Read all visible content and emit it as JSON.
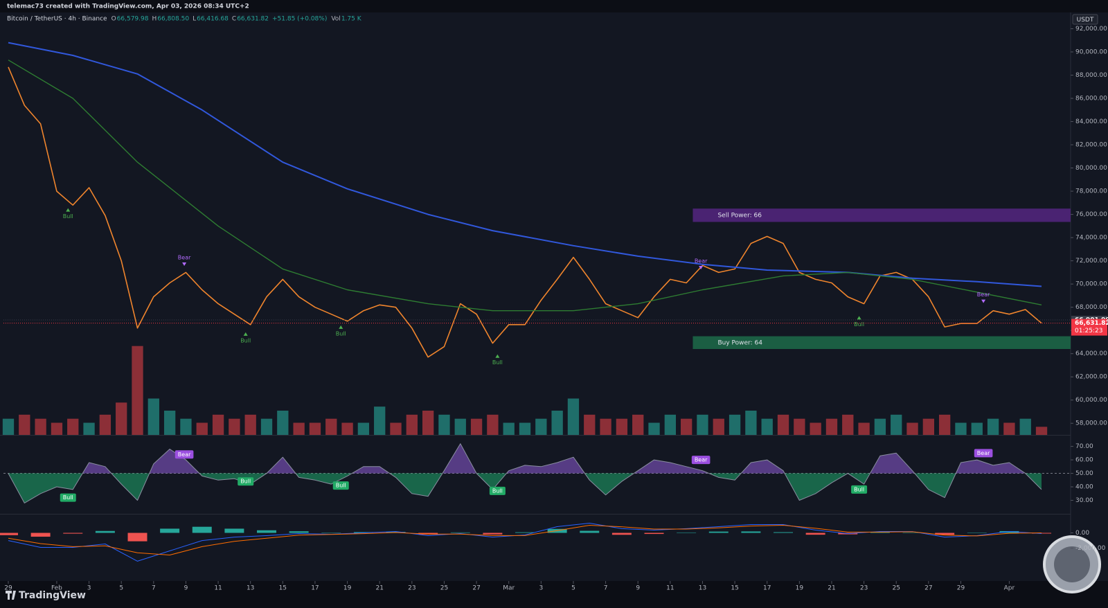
{
  "header": {
    "author": "telemac73 created with TradingView.com, Apr 03, 2026 08:34 UTC+2",
    "symbol": "Bitcoin / TetherUS · 4h · Binance",
    "ohlc": [
      {
        "key": "O",
        "value": "66,579.98"
      },
      {
        "key": "H",
        "value": "66,808.50"
      },
      {
        "key": "L",
        "value": "66,416.68"
      },
      {
        "key": "C",
        "value": "66,631.82"
      }
    ],
    "change": "+51.85 (+0.08%)",
    "volume": {
      "key": "Vol",
      "value": "1.75 K"
    },
    "currency": "USDT",
    "brand": "TradingView"
  },
  "chart_data": [
    {
      "type": "line",
      "xlim": [
        -0.3,
        65.8
      ],
      "ylim": [
        57000,
        93400
      ],
      "yticks": [
        {
          "value": 92000,
          "label": "92,000.00"
        },
        {
          "value": 90000,
          "label": "90,000.00"
        },
        {
          "value": 88000,
          "label": "88,000.00"
        },
        {
          "value": 86000,
          "label": "86,000.00"
        },
        {
          "value": 84000,
          "label": "84,000.00"
        },
        {
          "value": 82000,
          "label": "82,000.00"
        },
        {
          "value": 80000,
          "label": "80,000.00"
        },
        {
          "value": 78000,
          "label": "78,000.00"
        },
        {
          "value": 76000,
          "label": "76,000.00"
        },
        {
          "value": 74000,
          "label": "74,000.00"
        },
        {
          "value": 72000,
          "label": "72,000.00"
        },
        {
          "value": 70000,
          "label": "70,000.00"
        },
        {
          "value": 68000,
          "label": "68,000.00"
        },
        {
          "value": 66000,
          "label": "66,000.00"
        },
        {
          "value": 64000,
          "label": "64,000.00"
        },
        {
          "value": 62000,
          "label": "62,000.00"
        },
        {
          "value": 60000,
          "label": "60,000.00"
        },
        {
          "value": 58000,
          "label": "58,000.00"
        }
      ],
      "series": [
        {
          "color": "#f0852d",
          "width": 1.6,
          "x": [
            0,
            1,
            2,
            3,
            4,
            5,
            6,
            7,
            8,
            9,
            10,
            11,
            12,
            13,
            14,
            15,
            16,
            17,
            18,
            19,
            20,
            21,
            22,
            23,
            24,
            25,
            26,
            27,
            28,
            29,
            30,
            31,
            32,
            33,
            34,
            35,
            36,
            37,
            38,
            39,
            40,
            41,
            42,
            43,
            44,
            45,
            46,
            47,
            48,
            49,
            50,
            51,
            52,
            53,
            54,
            55,
            56,
            57,
            58,
            59,
            60,
            61,
            62,
            63,
            64
          ],
          "values": [
            88700,
            85400,
            83800,
            78000,
            76800,
            78300,
            75900,
            72000,
            66200,
            68900,
            70100,
            71000,
            69500,
            68300,
            67400,
            66500,
            68900,
            70400,
            68900,
            68000,
            67400,
            66800,
            67700,
            68200,
            68000,
            66200,
            63700,
            64600,
            68300,
            67400,
            64900,
            66500,
            66500,
            68600,
            70400,
            72300,
            70400,
            68300,
            67700,
            67100,
            68900,
            70400,
            70100,
            71600,
            71000,
            71300,
            73500,
            74100,
            73500,
            71000,
            70400,
            70100,
            68900,
            68300,
            70700,
            71000,
            70400,
            68900,
            66300,
            66600,
            66600,
            67700,
            67400,
            67800,
            66631.82
          ]
        },
        {
          "color": "#3158dc",
          "width": 2,
          "x": [
            0,
            4,
            8,
            12,
            17,
            21,
            26,
            30,
            35,
            39,
            43,
            47,
            52,
            56,
            60,
            64
          ],
          "values": [
            90800,
            89700,
            88100,
            85000,
            80500,
            78200,
            76000,
            74600,
            73300,
            72400,
            71700,
            71200,
            71000,
            70500,
            70200,
            69800
          ]
        },
        {
          "color": "#2e7d32",
          "width": 1.4,
          "x": [
            0,
            4,
            8,
            13,
            17,
            21,
            26,
            30,
            35,
            39,
            43,
            48,
            52,
            56,
            64
          ],
          "values": [
            89300,
            86000,
            80500,
            75000,
            71300,
            69500,
            68300,
            67700,
            67700,
            68300,
            69500,
            70700,
            71000,
            70400,
            68200
          ]
        }
      ],
      "zones": [
        {
          "label": "Sell Power: 66",
          "x0": 42.4,
          "y0": 75350,
          "y1": 76500,
          "color": "#4a2372"
        },
        {
          "label": "Buy Power: 64",
          "x0": 42.4,
          "y0": 64400,
          "y1": 65500,
          "color": "#1b5e43"
        }
      ],
      "annotations": [
        {
          "text": "Bull",
          "x": 3.7,
          "y": 76300,
          "pos": "below",
          "color": "#4caf50"
        },
        {
          "text": "Bear",
          "x": 10.9,
          "y": 71800,
          "pos": "above",
          "color": "#b36bff"
        },
        {
          "text": "Bull",
          "x": 14.7,
          "y": 65600,
          "pos": "below",
          "color": "#4caf50"
        },
        {
          "text": "Bull",
          "x": 20.6,
          "y": 66200,
          "pos": "below",
          "color": "#4caf50"
        },
        {
          "text": "Bull",
          "x": 30.3,
          "y": 63700,
          "pos": "below",
          "color": "#4caf50"
        },
        {
          "text": "Bear",
          "x": 42.9,
          "y": 71500,
          "pos": "above",
          "color": "#b36bff"
        },
        {
          "text": "Bull",
          "x": 52.7,
          "y": 67000,
          "pos": "below",
          "color": "#4caf50"
        },
        {
          "text": "Bear",
          "x": 60.4,
          "y": 68600,
          "pos": "above",
          "color": "#b36bff"
        }
      ],
      "price_labels": [
        {
          "value": 66901.99,
          "label": "66,901.99",
          "color": "#3a3e4a"
        },
        {
          "value": 66631.82,
          "label": "66,631.82",
          "countdown": "01:25:23",
          "color": "#f23645"
        }
      ]
    },
    {
      "type": "bar",
      "xlim": [
        -0.3,
        65.8
      ],
      "ylim": [
        0,
        30
      ],
      "up_color": "#1f6e6a",
      "down_color": "#8c2f37",
      "x": [
        0,
        1,
        2,
        3,
        4,
        5,
        6,
        7,
        8,
        9,
        10,
        11,
        12,
        13,
        14,
        15,
        16,
        17,
        18,
        19,
        20,
        21,
        22,
        23,
        24,
        25,
        26,
        27,
        28,
        29,
        30,
        31,
        32,
        33,
        34,
        35,
        36,
        37,
        38,
        39,
        40,
        41,
        42,
        43,
        44,
        45,
        46,
        47,
        48,
        49,
        50,
        51,
        52,
        53,
        54,
        55,
        56,
        57,
        58,
        59,
        60,
        61,
        62,
        63,
        64
      ],
      "values": [
        4,
        5,
        4,
        3,
        4,
        3,
        5,
        8,
        22,
        9,
        6,
        4,
        3,
        5,
        4,
        5,
        4,
        6,
        3,
        3,
        4,
        3,
        3,
        7,
        3,
        5,
        6,
        5,
        4,
        4,
        5,
        3,
        3,
        4,
        6,
        9,
        5,
        4,
        4,
        5,
        3,
        5,
        4,
        5,
        4,
        5,
        6,
        4,
        5,
        4,
        3,
        4,
        5,
        3,
        4,
        5,
        3,
        4,
        5,
        3,
        3,
        4,
        3,
        4,
        2
      ]
    },
    {
      "type": "line",
      "xlim": [
        -0.3,
        65.8
      ],
      "ylim": [
        20,
        78
      ],
      "yticks": [
        {
          "value": 70,
          "label": "70.00"
        },
        {
          "value": 60,
          "label": "60.00"
        },
        {
          "value": 50,
          "label": "50.00"
        },
        {
          "value": 40,
          "label": "40.00"
        },
        {
          "value": 30,
          "label": "30.00"
        }
      ],
      "baseline": 50,
      "fill_above": "#8e5bd6",
      "fill_below": "#1fa86b",
      "series": [
        {
          "color": "#8a8fa0",
          "width": 1,
          "x": [
            0,
            1,
            2,
            3,
            4,
            5,
            6,
            7,
            8,
            9,
            10,
            11,
            12,
            13,
            14,
            15,
            16,
            17,
            18,
            19,
            20,
            21,
            22,
            23,
            24,
            25,
            26,
            27,
            28,
            29,
            30,
            31,
            32,
            33,
            34,
            35,
            36,
            37,
            38,
            39,
            40,
            41,
            42,
            43,
            44,
            45,
            46,
            47,
            48,
            49,
            50,
            51,
            52,
            53,
            54,
            55,
            56,
            57,
            58,
            59,
            60,
            61,
            62,
            63,
            64
          ],
          "values": [
            50,
            28,
            35,
            40,
            38,
            58,
            55,
            42,
            30,
            57,
            68,
            60,
            48,
            45,
            46,
            42,
            50,
            62,
            47,
            45,
            42,
            48,
            55,
            55,
            47,
            35,
            33,
            52,
            72,
            50,
            38,
            52,
            56,
            55,
            58,
            62,
            45,
            34,
            44,
            52,
            60,
            58,
            55,
            52,
            47,
            45,
            58,
            60,
            52,
            30,
            35,
            43,
            50,
            42,
            63,
            65,
            52,
            38,
            32,
            58,
            60,
            56,
            58,
            50,
            38
          ]
        }
      ],
      "annotations": [
        {
          "text": "Bull",
          "x": 3.7,
          "y": 32,
          "pos": "box",
          "color": "#22ab66"
        },
        {
          "text": "Bear",
          "x": 10.9,
          "y": 64,
          "pos": "box",
          "color": "#9b4fe0"
        },
        {
          "text": "Bull",
          "x": 14.7,
          "y": 44,
          "pos": "box",
          "color": "#22ab66"
        },
        {
          "text": "Bull",
          "x": 20.6,
          "y": 41,
          "pos": "box",
          "color": "#22ab66"
        },
        {
          "text": "Bull",
          "x": 30.3,
          "y": 37,
          "pos": "box",
          "color": "#22ab66"
        },
        {
          "text": "Bear",
          "x": 42.9,
          "y": 60,
          "pos": "box",
          "color": "#9b4fe0"
        },
        {
          "text": "Bull",
          "x": 52.7,
          "y": 38,
          "pos": "box",
          "color": "#22ab66"
        },
        {
          "text": "Bear",
          "x": 60.4,
          "y": 65,
          "pos": "box",
          "color": "#9b4fe0"
        }
      ]
    },
    {
      "type": "line",
      "xlim": [
        -0.3,
        65.8
      ],
      "ylim": [
        -6200,
        2400
      ],
      "yticks": [
        {
          "value": 0,
          "label": "0.00"
        },
        {
          "value": -2000,
          "label": "-2,000.00"
        }
      ],
      "xticks": [
        {
          "value": 0,
          "label": "29"
        },
        {
          "value": 3,
          "label": "Feb"
        },
        {
          "value": 5,
          "label": "3"
        },
        {
          "value": 7,
          "label": "5"
        },
        {
          "value": 9,
          "label": "7"
        },
        {
          "value": 11,
          "label": "9"
        },
        {
          "value": 13,
          "label": "11"
        },
        {
          "value": 15,
          "label": "13"
        },
        {
          "value": 17,
          "label": "15"
        },
        {
          "value": 19,
          "label": "17"
        },
        {
          "value": 21,
          "label": "19"
        },
        {
          "value": 23,
          "label": "21"
        },
        {
          "value": 25,
          "label": "23"
        },
        {
          "value": 27,
          "label": "25"
        },
        {
          "value": 29,
          "label": "27"
        },
        {
          "value": 31,
          "label": "Mar"
        },
        {
          "value": 33,
          "label": "3"
        },
        {
          "value": 35,
          "label": "5"
        },
        {
          "value": 37,
          "label": "7"
        },
        {
          "value": 39,
          "label": "9"
        },
        {
          "value": 41,
          "label": "11"
        },
        {
          "value": 43,
          "label": "13"
        },
        {
          "value": 45,
          "label": "15"
        },
        {
          "value": 47,
          "label": "17"
        },
        {
          "value": 49,
          "label": "19"
        },
        {
          "value": 51,
          "label": "21"
        },
        {
          "value": 53,
          "label": "23"
        },
        {
          "value": 55,
          "label": "25"
        },
        {
          "value": 57,
          "label": "27"
        },
        {
          "value": 59,
          "label": "29"
        },
        {
          "value": 62,
          "label": "Apr"
        }
      ],
      "series": [
        {
          "type": "bar",
          "color": "#26a69a",
          "neg_color": "#ef5350",
          "x": [
            0,
            2,
            4,
            6,
            8,
            10,
            12,
            14,
            16,
            18,
            20,
            22,
            24,
            26,
            28,
            30,
            32,
            34,
            36,
            38,
            40,
            42,
            44,
            46,
            48,
            50,
            52,
            54,
            56,
            58,
            60,
            62,
            64
          ],
          "values": [
            -300,
            -500,
            -100,
            250,
            -1100,
            550,
            800,
            550,
            340,
            210,
            20,
            100,
            130,
            -210,
            60,
            -200,
            80,
            520,
            270,
            -250,
            -140,
            50,
            170,
            190,
            90,
            -240,
            -190,
            80,
            30,
            -250,
            40,
            230,
            -90
          ]
        },
        {
          "color": "#2962ff",
          "width": 1,
          "x": [
            0,
            2,
            4,
            6,
            8,
            10,
            12,
            14,
            16,
            18,
            20,
            22,
            24,
            26,
            28,
            30,
            32,
            34,
            36,
            38,
            40,
            42,
            44,
            46,
            48,
            50,
            52,
            54,
            56,
            58,
            60,
            62,
            64
          ],
          "values": [
            -1000,
            -1900,
            -1900,
            -1450,
            -3700,
            -2350,
            -1000,
            -550,
            -360,
            -90,
            -180,
            0,
            180,
            -360,
            -90,
            -550,
            -270,
            820,
            1270,
            550,
            360,
            550,
            820,
            1090,
            1090,
            360,
            -90,
            180,
            180,
            -550,
            -360,
            180,
            -90
          ]
        },
        {
          "color": "#ff6d00",
          "width": 1,
          "x": [
            0,
            2,
            4,
            6,
            8,
            10,
            12,
            14,
            16,
            18,
            20,
            22,
            24,
            26,
            28,
            30,
            32,
            34,
            36,
            38,
            40,
            42,
            44,
            46,
            48,
            50,
            52,
            54,
            56,
            58,
            60,
            62,
            64
          ],
          "values": [
            -700,
            -1400,
            -1800,
            -1700,
            -2600,
            -2900,
            -1800,
            -1100,
            -700,
            -300,
            -200,
            -100,
            50,
            -150,
            -150,
            -350,
            -350,
            300,
            1000,
            800,
            500,
            500,
            650,
            900,
            1000,
            600,
            100,
            100,
            150,
            -300,
            -400,
            -50,
            0
          ]
        }
      ]
    }
  ]
}
